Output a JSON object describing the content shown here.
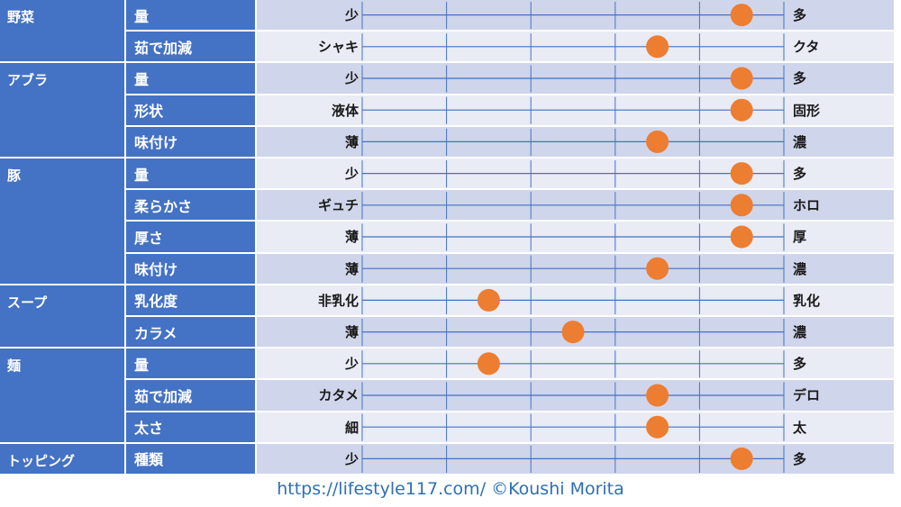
{
  "chart_data": {
    "type": "table",
    "scale_steps": 5,
    "colors": {
      "header": "#4472c4",
      "band_odd": "#cfd5ea",
      "band_even": "#e9ebf5",
      "marker": "#ed7d31",
      "line": "#4472c4"
    },
    "groups": [
      {
        "name": "野菜",
        "rows": [
          {
            "label": "量",
            "left": "少",
            "right": "多",
            "value": 4.5
          },
          {
            "label": "茹で加減",
            "left": "シャキ",
            "right": "クタ",
            "value": 3.5
          }
        ]
      },
      {
        "name": "アブラ",
        "rows": [
          {
            "label": "量",
            "left": "少",
            "right": "多",
            "value": 4.5
          },
          {
            "label": "形状",
            "left": "液体",
            "right": "固形",
            "value": 4.5
          },
          {
            "label": "味付け",
            "left": "薄",
            "right": "濃",
            "value": 3.5
          }
        ]
      },
      {
        "name": "豚",
        "rows": [
          {
            "label": "量",
            "left": "少",
            "right": "多",
            "value": 4.5
          },
          {
            "label": "柔らかさ",
            "left": "ギュチ",
            "right": "ホロ",
            "value": 4.5
          },
          {
            "label": "厚さ",
            "left": "薄",
            "right": "厚",
            "value": 4.5
          },
          {
            "label": "味付け",
            "left": "薄",
            "right": "濃",
            "value": 3.5
          }
        ]
      },
      {
        "name": "スープ",
        "rows": [
          {
            "label": "乳化度",
            "left": "非乳化",
            "right": "乳化",
            "value": 1.5
          },
          {
            "label": "カラメ",
            "left": "薄",
            "right": "濃",
            "value": 2.5
          }
        ]
      },
      {
        "name": "麺",
        "rows": [
          {
            "label": "量",
            "left": "少",
            "right": "多",
            "value": 1.5
          },
          {
            "label": "茹で加減",
            "left": "カタメ",
            "right": "デロ",
            "value": 3.5
          },
          {
            "label": "太さ",
            "left": "細",
            "right": "太",
            "value": 3.5
          }
        ]
      },
      {
        "name": "トッピング",
        "rows": [
          {
            "label": "種類",
            "left": "少",
            "right": "多",
            "value": 4.5
          }
        ]
      }
    ]
  },
  "footer": {
    "text": "https://lifestyle117.com/  ©Koushi Morita"
  }
}
